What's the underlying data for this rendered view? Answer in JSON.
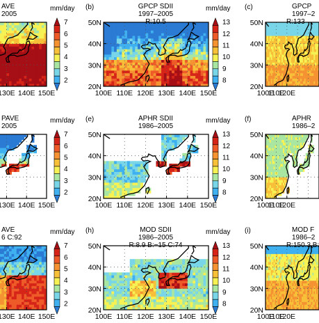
{
  "colormaps": {
    "ave": [
      "#2b7bd4",
      "#3fb0f0",
      "#78d6e8",
      "#a9e6a1",
      "#f7f254",
      "#f7c038",
      "#f59232",
      "#ee5a28",
      "#d62518",
      "#a50f15"
    ],
    "sdii": [
      "#2b7bd4",
      "#3fb0f0",
      "#78d6e8",
      "#a9e6a1",
      "#f7f254",
      "#f7c038",
      "#f59232",
      "#ee5a28",
      "#d62518",
      "#a50f15"
    ]
  },
  "panels": [
    {
      "id": "a",
      "header_label": "",
      "title": "AVE",
      "period": "2005",
      "stats": "",
      "colorbar": "ave",
      "visible_part": "right",
      "field": "ave_obs"
    },
    {
      "id": "b",
      "header_label": "(b)",
      "title": "GPCP SDII",
      "period": "1997–2005",
      "stats": "R:10.5",
      "colorbar": "sdii",
      "visible_part": "full",
      "field": "sdii_gpcp"
    },
    {
      "id": "c",
      "header_label": "(c)",
      "title": "GPCP",
      "period": "1997–2",
      "stats": "R:133",
      "colorbar": "none",
      "visible_part": "left",
      "field": "freq_gpcp"
    },
    {
      "id": "d",
      "header_label": "",
      "title": "PAVE",
      "period": "2005",
      "stats": "",
      "colorbar": "ave",
      "visible_part": "right",
      "field": "ave_aphr"
    },
    {
      "id": "e",
      "header_label": "(e)",
      "title": "APHR SDII",
      "period": "1986–2005",
      "stats": "",
      "colorbar": "sdii",
      "visible_part": "full",
      "field": "sdii_aphr"
    },
    {
      "id": "f",
      "header_label": "(f)",
      "title": "APHR",
      "period": "1986–2",
      "stats": "",
      "colorbar": "none",
      "visible_part": "left",
      "field": "freq_aphr"
    },
    {
      "id": "g",
      "header_label": "",
      "title": "AVE",
      "period": "6 C:92",
      "stats": "",
      "colorbar": "ave",
      "visible_part": "right",
      "field": "ave_mod"
    },
    {
      "id": "h",
      "header_label": "(h)",
      "title": "MOD SDII",
      "period": "1986–2005",
      "stats": "R:8.9  B:−15  C:74",
      "colorbar": "sdii",
      "visible_part": "full",
      "field": "sdii_mod"
    },
    {
      "id": "i",
      "header_label": "(i)",
      "title": "MOD F",
      "period": "1986–2",
      "stats": "R:150.3  B:",
      "colorbar": "none",
      "visible_part": "left",
      "field": "freq_mod"
    }
  ],
  "colorbars": {
    "ave": {
      "unit": "mm/day",
      "ticks": [
        "2",
        "3",
        "4",
        "5",
        "6",
        "7"
      ]
    },
    "sdii": {
      "unit": "mm/day",
      "ticks": [
        "8",
        "9",
        "10",
        "11",
        "12",
        "13"
      ]
    }
  },
  "axes": {
    "lat_full": [
      "20N",
      "30N",
      "40N",
      "50N"
    ],
    "lon_full": [
      "100E",
      "110E",
      "120E",
      "130E",
      "140E",
      "150E"
    ],
    "lon_cut_left": [
      "130E",
      "140E",
      "150E"
    ],
    "lat_cut_right": [
      "20N",
      "30N",
      "40N",
      "50N"
    ],
    "lon_cut_right": [
      "100E",
      "110E",
      "120E"
    ]
  }
}
